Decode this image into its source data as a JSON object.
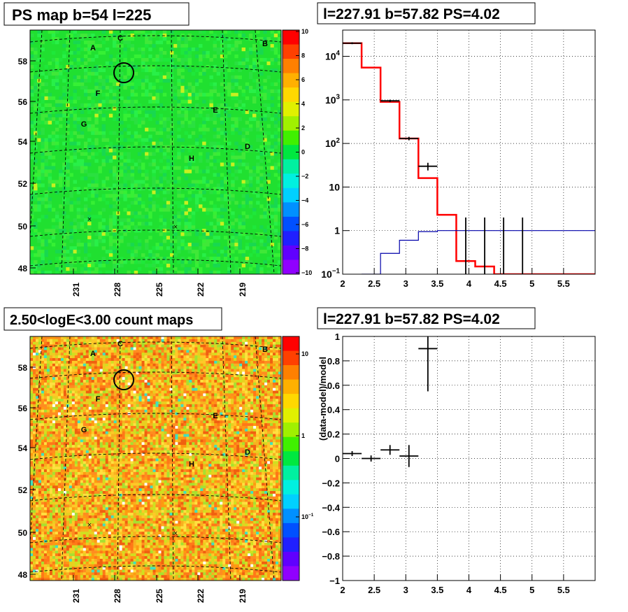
{
  "colors": {
    "panel_border": "#000000",
    "grid": "#000000",
    "model_red": "#ff0000",
    "bkg_blue": "#0000aa",
    "data_black": "#000000"
  },
  "chart_data": [
    {
      "type": "heatmap",
      "title": "PS map b=54 l=225",
      "xlabel": "",
      "ylabel": "",
      "x_ticks": [
        "231",
        "228",
        "225",
        "222",
        "219"
      ],
      "y_ticks": [
        "48",
        "50",
        "52",
        "54",
        "56",
        "58"
      ],
      "palette_ticks": [
        "10",
        "8",
        "6",
        "4",
        "2",
        "0",
        "−2",
        "−4",
        "−6",
        "−8",
        "−10"
      ],
      "zlim": [
        -10,
        10
      ],
      "dominant_value": 0,
      "source_labels": [
        "A",
        "B",
        "C",
        "D",
        "E",
        "F",
        "G",
        "H"
      ],
      "marker": "circle at l=227.91 b=57.82"
    },
    {
      "type": "line",
      "title": "l=227.91 b=57.82 PS=4.02",
      "xlabel": "",
      "ylabel": "",
      "xlim": [
        2,
        6
      ],
      "ylim": [
        0.1,
        40000
      ],
      "y_scale": "log",
      "x_ticks": [
        "2",
        "2.5",
        "3",
        "3.5",
        "4",
        "4.5",
        "5",
        "5.5"
      ],
      "y_ticks": [
        "10^4",
        "10^3",
        "10^2",
        "10",
        "1",
        "10^-1"
      ],
      "grid": true,
      "series": [
        {
          "style": "step",
          "color": "#ff0000",
          "edges": [
            2.0,
            2.3,
            2.6,
            2.9,
            3.2,
            3.5,
            3.8,
            4.1,
            4.4,
            6.0
          ],
          "values": [
            20000,
            5500,
            900,
            130,
            16,
            2.3,
            0.2,
            0.15,
            0.1
          ]
        },
        {
          "style": "step",
          "color": "#0000aa",
          "edges": [
            2.3,
            2.6,
            2.9,
            3.2,
            3.5,
            6.0
          ],
          "values": [
            0.1,
            0.3,
            0.6,
            0.95,
            1.0
          ]
        },
        {
          "style": "points",
          "points": [
            {
              "x": 2.15,
              "y": 20000,
              "xerr": 0.15,
              "ylo": 19000,
              "yhi": 21000
            },
            {
              "x": 2.75,
              "y": 950,
              "xerr": 0.15,
              "ylo": 890,
              "yhi": 1010
            },
            {
              "x": 3.05,
              "y": 130,
              "xerr": 0.15,
              "ylo": 118,
              "yhi": 142
            },
            {
              "x": 3.35,
              "y": 30,
              "xerr": 0.15,
              "ylo": 24,
              "yhi": 36
            },
            {
              "x": 3.95,
              "y": 0.1,
              "xerr": 0,
              "ylo": 0.1,
              "yhi": 2
            },
            {
              "x": 4.25,
              "y": 0.1,
              "xerr": 0,
              "ylo": 0.1,
              "yhi": 2
            },
            {
              "x": 4.55,
              "y": 0.1,
              "xerr": 0,
              "ylo": 0.1,
              "yhi": 2
            },
            {
              "x": 4.85,
              "y": 0.1,
              "xerr": 0,
              "ylo": 0.1,
              "yhi": 2
            }
          ]
        }
      ]
    },
    {
      "type": "heatmap",
      "title": "2.50<logE<3.00 count maps",
      "xlabel": "",
      "ylabel": "",
      "x_ticks": [
        "231",
        "228",
        "225",
        "222",
        "219"
      ],
      "y_ticks": [
        "48",
        "50",
        "52",
        "54",
        "56",
        "58"
      ],
      "palette_ticks": [
        "10",
        "1",
        "10^-1"
      ],
      "z_scale": "log",
      "source_labels": [
        "A",
        "B",
        "C",
        "D",
        "E",
        "F",
        "G",
        "H"
      ],
      "marker": "circle at l=227.91 b=57.82"
    },
    {
      "type": "scatter",
      "title": "l=227.91 b=57.82 PS=4.02",
      "xlabel": "",
      "ylabel": "(data-model)/model",
      "xlim": [
        2,
        6
      ],
      "ylim": [
        -1,
        1
      ],
      "x_ticks": [
        "2",
        "2.5",
        "3",
        "3.5",
        "4",
        "4.5",
        "5",
        "5.5"
      ],
      "y_ticks": [
        "1",
        "0.8",
        "0.6",
        "0.4",
        "0.2",
        "0",
        "−0.2",
        "−0.4",
        "−0.6",
        "−0.8",
        "−1"
      ],
      "grid": true,
      "points": [
        {
          "x": 2.15,
          "y": 0.04,
          "xerr": 0.15,
          "yerr": 0.02
        },
        {
          "x": 2.45,
          "y": 0.0,
          "xerr": 0.15,
          "yerr": 0.025
        },
        {
          "x": 2.75,
          "y": 0.07,
          "xerr": 0.15,
          "yerr": 0.04
        },
        {
          "x": 3.05,
          "y": 0.02,
          "xerr": 0.15,
          "yerr": 0.09
        },
        {
          "x": 3.35,
          "y": 0.9,
          "xerr": 0.15,
          "yerr": 0.35
        }
      ]
    }
  ]
}
